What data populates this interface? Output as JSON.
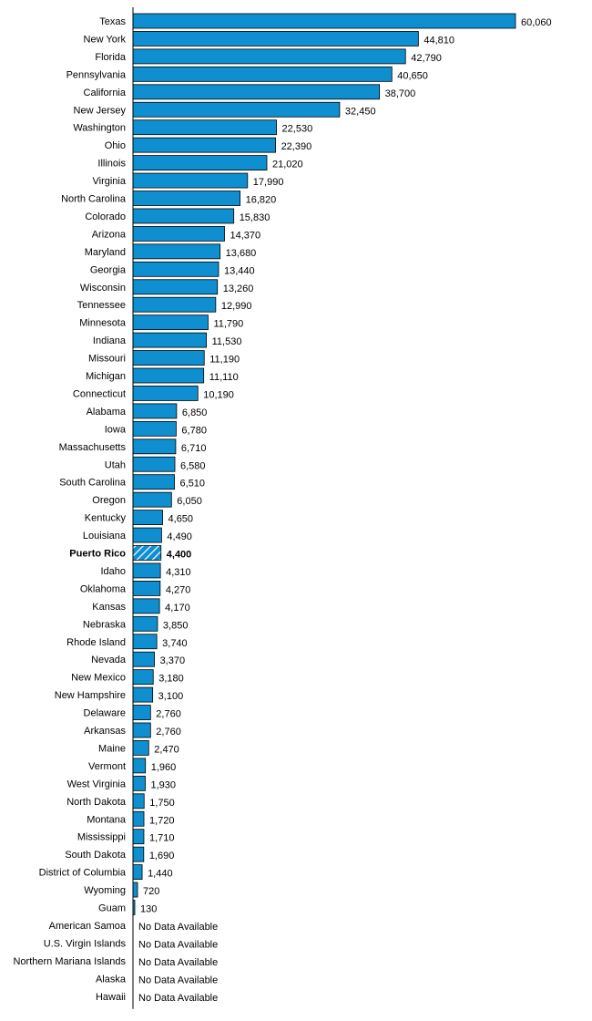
{
  "colors": {
    "bar_fill": "#0f8fcf",
    "bar_stroke": "#000000",
    "highlight_hatch": "#ffffff",
    "axis": "#000000",
    "text": "#000000"
  },
  "chart_data": {
    "type": "bar",
    "orientation": "horizontal",
    "title": "",
    "xlabel": "",
    "ylabel": "",
    "xlim": [
      0,
      60060
    ],
    "grid": false,
    "legend": "none",
    "highlight": "Puerto Rico",
    "highlight_style": "hatched bar, bold label",
    "no_data_label": "No Data Available",
    "categories": [
      "Texas",
      "New York",
      "Florida",
      "Pennsylvania",
      "California",
      "New Jersey",
      "Washington",
      "Ohio",
      "Illinois",
      "Virginia",
      "North Carolina",
      "Colorado",
      "Arizona",
      "Maryland",
      "Georgia",
      "Wisconsin",
      "Tennessee",
      "Minnesota",
      "Indiana",
      "Missouri",
      "Michigan",
      "Connecticut",
      "Alabama",
      "Iowa",
      "Massachusetts",
      "Utah",
      "South Carolina",
      "Oregon",
      "Kentucky",
      "Louisiana",
      "Puerto Rico",
      "Idaho",
      "Oklahoma",
      "Kansas",
      "Nebraska",
      "Rhode Island",
      "Nevada",
      "New Mexico",
      "New Hampshire",
      "Delaware",
      "Arkansas",
      "Maine",
      "Vermont",
      "West Virginia",
      "North Dakota",
      "Montana",
      "Mississippi",
      "South Dakota",
      "District of Columbia",
      "Wyoming",
      "Guam",
      "American Samoa",
      "U.S. Virgin Islands",
      "Northern Mariana Islands",
      "Alaska",
      "Hawaii"
    ],
    "values": [
      60060,
      44810,
      42790,
      40650,
      38700,
      32450,
      22530,
      22390,
      21020,
      17990,
      16820,
      15830,
      14370,
      13680,
      13440,
      13260,
      12990,
      11790,
      11530,
      11190,
      11110,
      10190,
      6850,
      6780,
      6710,
      6580,
      6510,
      6050,
      4650,
      4490,
      4400,
      4310,
      4270,
      4170,
      3850,
      3740,
      3370,
      3180,
      3100,
      2760,
      2760,
      2470,
      1960,
      1930,
      1750,
      1720,
      1710,
      1690,
      1440,
      720,
      130,
      null,
      null,
      null,
      null,
      null
    ],
    "value_labels": [
      "60,060",
      "44,810",
      "42,790",
      "40,650",
      "38,700",
      "32,450",
      "22,530",
      "22,390",
      "21,020",
      "17,990",
      "16,820",
      "15,830",
      "14,370",
      "13,680",
      "13,440",
      "13,260",
      "12,990",
      "11,790",
      "11,530",
      "11,190",
      "11,110",
      "10,190",
      "6,850",
      "6,780",
      "6,710",
      "6,580",
      "6,510",
      "6,050",
      "4,650",
      "4,490",
      "4,400",
      "4,310",
      "4,270",
      "4,170",
      "3,850",
      "3,740",
      "3,370",
      "3,180",
      "3,100",
      "2,760",
      "2,760",
      "2,470",
      "1,960",
      "1,930",
      "1,750",
      "1,720",
      "1,710",
      "1,690",
      "1,440",
      "720",
      "130",
      "No Data Available",
      "No Data Available",
      "No Data Available",
      "No Data Available",
      "No Data Available"
    ]
  }
}
